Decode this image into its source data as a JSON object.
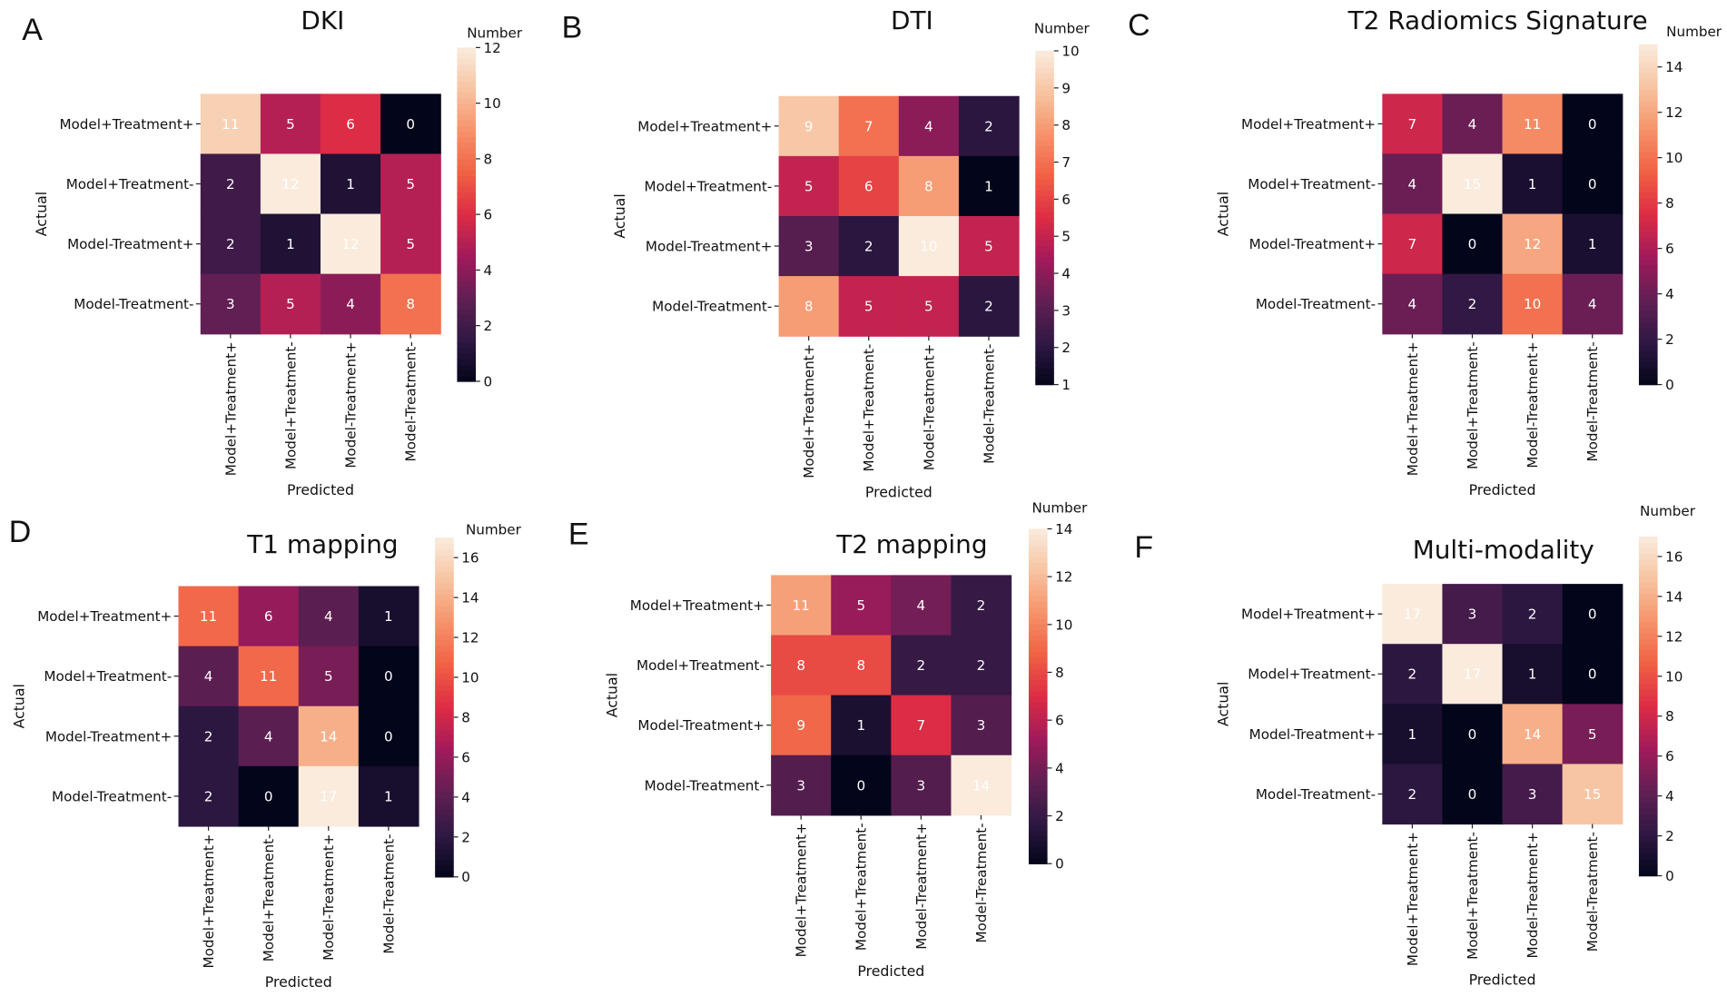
{
  "chart_data": [
    {
      "panel": "A",
      "type": "heatmap",
      "title": "DKI",
      "xlabel": "Predicted",
      "ylabel": "Actual",
      "colorbar_label": "Number",
      "categories": [
        "Model+Treatment+",
        "Model+Treatment-",
        "Model-Treatment+",
        "Model-Treatment-"
      ],
      "values": [
        [
          11,
          5,
          6,
          0
        ],
        [
          2,
          12,
          1,
          5
        ],
        [
          2,
          1,
          12,
          5
        ],
        [
          3,
          5,
          4,
          8
        ]
      ],
      "vrange": [
        0,
        12
      ],
      "colorbar_ticks": [
        0,
        2,
        4,
        6,
        8,
        10,
        12
      ]
    },
    {
      "panel": "B",
      "type": "heatmap",
      "title": "DTI",
      "xlabel": "Predicted",
      "ylabel": "Actual",
      "colorbar_label": "Number",
      "categories": [
        "Model+Treatment+",
        "Model+Treatment-",
        "Model-Treatment+",
        "Model-Treatment-"
      ],
      "values": [
        [
          9,
          7,
          4,
          2
        ],
        [
          5,
          6,
          8,
          1
        ],
        [
          3,
          2,
          10,
          5
        ],
        [
          8,
          5,
          5,
          2
        ]
      ],
      "vrange": [
        1,
        10
      ],
      "colorbar_ticks": [
        1,
        2,
        3,
        4,
        5,
        6,
        7,
        8,
        9,
        10
      ]
    },
    {
      "panel": "C",
      "type": "heatmap",
      "title": "T2 Radiomics Signature",
      "xlabel": "Predicted",
      "ylabel": "Actual",
      "colorbar_label": "Number",
      "categories": [
        "Model+Treatment+",
        "Model+Treatment-",
        "Model-Treatment+",
        "Model-Treatment-"
      ],
      "values": [
        [
          7,
          4,
          11,
          0
        ],
        [
          4,
          15,
          1,
          0
        ],
        [
          7,
          0,
          12,
          1
        ],
        [
          4,
          2,
          10,
          4
        ]
      ],
      "vrange": [
        0,
        15
      ],
      "colorbar_ticks": [
        0,
        2,
        4,
        6,
        8,
        10,
        12,
        14
      ]
    },
    {
      "panel": "D",
      "type": "heatmap",
      "title": "T1 mapping",
      "xlabel": "Predicted",
      "ylabel": "Actual",
      "colorbar_label": "Number",
      "categories": [
        "Model+Treatment+",
        "Model+Treatment-",
        "Model-Treatment+",
        "Model-Treatment-"
      ],
      "values": [
        [
          11,
          6,
          4,
          1
        ],
        [
          4,
          11,
          5,
          0
        ],
        [
          2,
          4,
          14,
          0
        ],
        [
          2,
          0,
          17,
          1
        ]
      ],
      "vrange": [
        0,
        17
      ],
      "colorbar_ticks": [
        0,
        2,
        4,
        6,
        8,
        10,
        12,
        14,
        16
      ]
    },
    {
      "panel": "E",
      "type": "heatmap",
      "title": "T2 mapping",
      "xlabel": "Predicted",
      "ylabel": "Actual",
      "colorbar_label": "Number",
      "categories": [
        "Model+Treatment+",
        "Model+Treatment-",
        "Model-Treatment+",
        "Model-Treatment-"
      ],
      "values": [
        [
          11,
          5,
          4,
          2
        ],
        [
          8,
          8,
          2,
          2
        ],
        [
          9,
          1,
          7,
          3
        ],
        [
          3,
          0,
          3,
          14
        ]
      ],
      "vrange": [
        0,
        14
      ],
      "colorbar_ticks": [
        0,
        2,
        4,
        6,
        8,
        10,
        12,
        14
      ]
    },
    {
      "panel": "F",
      "type": "heatmap",
      "title": "Multi-modality",
      "xlabel": "Predicted",
      "ylabel": "Actual",
      "colorbar_label": "Number",
      "categories": [
        "Model+Treatment+",
        "Model+Treatment-",
        "Model-Treatment+",
        "Model-Treatment-"
      ],
      "values": [
        [
          17,
          3,
          2,
          0
        ],
        [
          2,
          17,
          1,
          0
        ],
        [
          1,
          0,
          14,
          5
        ],
        [
          2,
          0,
          3,
          15
        ]
      ],
      "vrange": [
        0,
        17
      ],
      "colorbar_ticks": [
        0,
        2,
        4,
        6,
        8,
        10,
        12,
        14,
        16
      ]
    }
  ],
  "colormap": [
    "#03051a",
    "#2f1843",
    "#611f53",
    "#a11a5b",
    "#dd2c45",
    "#f06043",
    "#f6926a",
    "#f7c3a0",
    "#faebdd"
  ]
}
